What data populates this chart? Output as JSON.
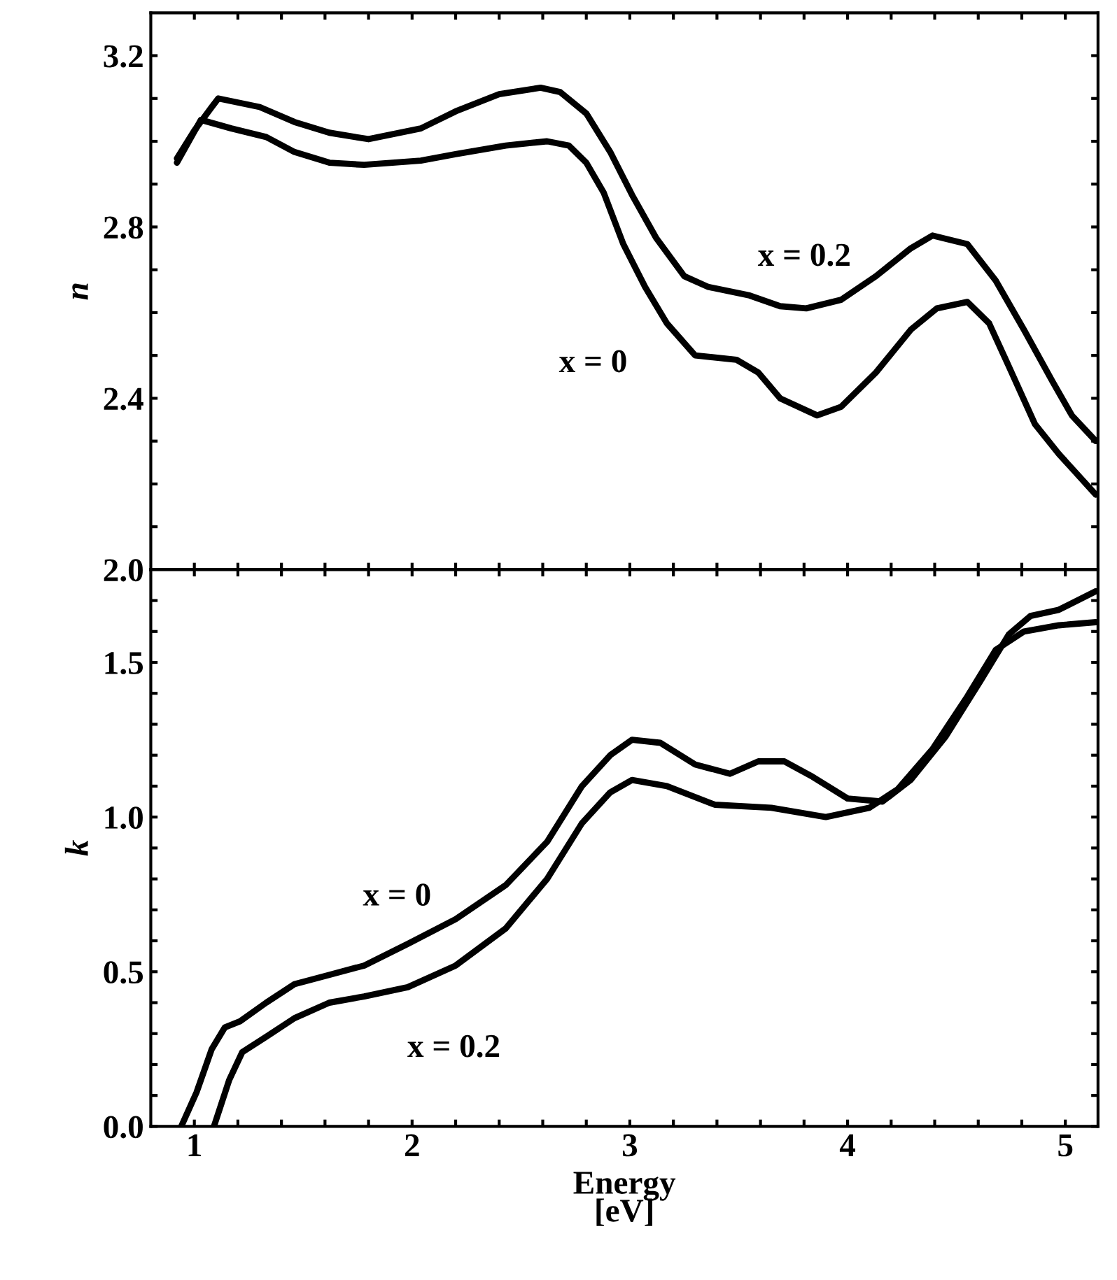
{
  "chart_data": [
    {
      "type": "line",
      "ylabel": "n",
      "xlim": [
        0.8,
        5.15
      ],
      "ylim": [
        2.0,
        3.3
      ],
      "xticks": [
        {
          "value": 1,
          "label": null
        },
        {
          "value": 1.2,
          "label": null
        },
        {
          "value": 1.4,
          "label": null
        },
        {
          "value": 1.6,
          "label": null
        },
        {
          "value": 1.8,
          "label": null
        },
        {
          "value": 2,
          "label": null
        },
        {
          "value": 2.2,
          "label": null
        },
        {
          "value": 2.4,
          "label": null
        },
        {
          "value": 2.6,
          "label": null
        },
        {
          "value": 2.8,
          "label": null
        },
        {
          "value": 3,
          "label": null
        },
        {
          "value": 3.2,
          "label": null
        },
        {
          "value": 3.4,
          "label": null
        },
        {
          "value": 3.6,
          "label": null
        },
        {
          "value": 3.8,
          "label": null
        },
        {
          "value": 4,
          "label": null
        },
        {
          "value": 4.2,
          "label": null
        },
        {
          "value": 4.4,
          "label": null
        },
        {
          "value": 4.6,
          "label": null
        },
        {
          "value": 4.8,
          "label": null
        },
        {
          "value": 5,
          "label": null
        }
      ],
      "yticks": [
        {
          "value": 2.0,
          "label": "2.0"
        },
        {
          "value": 2.1,
          "label": null
        },
        {
          "value": 2.2,
          "label": null
        },
        {
          "value": 2.3,
          "label": null
        },
        {
          "value": 2.4,
          "label": "2.4"
        },
        {
          "value": 2.5,
          "label": null
        },
        {
          "value": 2.6,
          "label": null
        },
        {
          "value": 2.7,
          "label": null
        },
        {
          "value": 2.8,
          "label": "2.8"
        },
        {
          "value": 2.9,
          "label": null
        },
        {
          "value": 3.0,
          "label": null
        },
        {
          "value": 3.1,
          "label": null
        },
        {
          "value": 3.2,
          "label": "3.2"
        }
      ],
      "tick_labels": "y",
      "series": [
        {
          "name": "x = 0",
          "color": "#000000",
          "x": [
            0.92,
            1.03,
            1.17,
            1.33,
            1.46,
            1.62,
            1.78,
            2.04,
            2.2,
            2.43,
            2.62,
            2.72,
            2.8,
            2.88,
            2.97,
            3.07,
            3.17,
            3.3,
            3.49,
            3.59,
            3.69,
            3.86,
            3.97,
            4.13,
            4.29,
            4.41,
            4.55,
            4.65,
            4.74,
            4.86,
            4.97,
            5.14
          ],
          "values": [
            2.95,
            3.05,
            3.03,
            3.01,
            2.975,
            2.95,
            2.945,
            2.955,
            2.97,
            2.99,
            3.0,
            2.99,
            2.95,
            2.88,
            2.76,
            2.66,
            2.575,
            2.5,
            2.49,
            2.46,
            2.4,
            2.36,
            2.38,
            2.46,
            2.56,
            2.61,
            2.625,
            2.575,
            2.475,
            2.34,
            2.27,
            2.175
          ]
        },
        {
          "name": "x = 0.2",
          "color": "#000000",
          "x": [
            0.92,
            1.0,
            1.08,
            1.11,
            1.3,
            1.46,
            1.62,
            1.8,
            2.04,
            2.2,
            2.4,
            2.59,
            2.68,
            2.8,
            2.91,
            3.01,
            3.12,
            3.25,
            3.36,
            3.55,
            3.69,
            3.81,
            3.97,
            4.13,
            4.29,
            4.39,
            4.55,
            4.68,
            4.81,
            4.94,
            5.03,
            5.14
          ],
          "values": [
            2.96,
            3.025,
            3.08,
            3.1,
            3.08,
            3.045,
            3.02,
            3.005,
            3.03,
            3.07,
            3.11,
            3.125,
            3.115,
            3.065,
            2.975,
            2.875,
            2.775,
            2.685,
            2.66,
            2.64,
            2.615,
            2.61,
            2.63,
            2.685,
            2.75,
            2.78,
            2.76,
            2.675,
            2.56,
            2.44,
            2.36,
            2.3
          ]
        }
      ]
    },
    {
      "type": "line",
      "xlabel": "Energy\n[eV]",
      "ylabel": "k",
      "xlim": [
        0.8,
        5.15
      ],
      "ylim": [
        0,
        1.8
      ],
      "xticks": [
        {
          "value": 1,
          "label": "1"
        },
        {
          "value": 1.2,
          "label": null
        },
        {
          "value": 1.4,
          "label": null
        },
        {
          "value": 1.6,
          "label": null
        },
        {
          "value": 1.8,
          "label": null
        },
        {
          "value": 2,
          "label": "2"
        },
        {
          "value": 2.2,
          "label": null
        },
        {
          "value": 2.4,
          "label": null
        },
        {
          "value": 2.6,
          "label": null
        },
        {
          "value": 2.8,
          "label": null
        },
        {
          "value": 3,
          "label": "3"
        },
        {
          "value": 3.2,
          "label": null
        },
        {
          "value": 3.4,
          "label": null
        },
        {
          "value": 3.6,
          "label": null
        },
        {
          "value": 3.8,
          "label": null
        },
        {
          "value": 4,
          "label": "4"
        },
        {
          "value": 4.2,
          "label": null
        },
        {
          "value": 4.4,
          "label": null
        },
        {
          "value": 4.6,
          "label": null
        },
        {
          "value": 4.8,
          "label": null
        },
        {
          "value": 5,
          "label": "5"
        }
      ],
      "yticks": [
        {
          "value": 0,
          "label": "0.0"
        },
        {
          "value": 0.1,
          "label": null
        },
        {
          "value": 0.2,
          "label": null
        },
        {
          "value": 0.3,
          "label": null
        },
        {
          "value": 0.4,
          "label": null
        },
        {
          "value": 0.5,
          "label": "0.5"
        },
        {
          "value": 0.6,
          "label": null
        },
        {
          "value": 0.7,
          "label": null
        },
        {
          "value": 0.8,
          "label": null
        },
        {
          "value": 0.9,
          "label": null
        },
        {
          "value": 1.0,
          "label": "1.0"
        },
        {
          "value": 1.1,
          "label": null
        },
        {
          "value": 1.2,
          "label": null
        },
        {
          "value": 1.3,
          "label": null
        },
        {
          "value": 1.4,
          "label": null
        },
        {
          "value": 1.5,
          "label": "1.5"
        },
        {
          "value": 1.6,
          "label": null
        },
        {
          "value": 1.7,
          "label": null
        }
      ],
      "series": [
        {
          "name": "x = 0",
          "color": "#000000",
          "x": [
            0.94,
            1.01,
            1.08,
            1.14,
            1.21,
            1.33,
            1.46,
            1.62,
            1.78,
            1.98,
            2.2,
            2.43,
            2.62,
            2.78,
            2.91,
            3.01,
            3.14,
            3.3,
            3.46,
            3.59,
            3.71,
            3.84,
            4.0,
            4.16,
            4.29,
            4.45,
            4.61,
            4.74,
            4.84,
            4.97,
            5.14
          ],
          "values": [
            0,
            0.11,
            0.25,
            0.32,
            0.34,
            0.4,
            0.46,
            0.49,
            0.52,
            0.59,
            0.67,
            0.78,
            0.92,
            1.1,
            1.2,
            1.25,
            1.24,
            1.17,
            1.14,
            1.18,
            1.18,
            1.13,
            1.06,
            1.05,
            1.12,
            1.26,
            1.44,
            1.59,
            1.65,
            1.67,
            1.73
          ]
        },
        {
          "name": "x = 0.2",
          "color": "#000000",
          "x": [
            1.09,
            1.16,
            1.22,
            1.33,
            1.46,
            1.62,
            1.78,
            1.98,
            2.2,
            2.43,
            2.62,
            2.78,
            2.91,
            3.01,
            3.17,
            3.39,
            3.65,
            3.9,
            4.1,
            4.23,
            4.39,
            4.55,
            4.68,
            4.81,
            4.97,
            5.14
          ],
          "values": [
            0,
            0.15,
            0.24,
            0.29,
            0.35,
            0.4,
            0.42,
            0.45,
            0.52,
            0.64,
            0.8,
            0.98,
            1.08,
            1.12,
            1.1,
            1.04,
            1.03,
            1.0,
            1.03,
            1.09,
            1.22,
            1.39,
            1.54,
            1.6,
            1.62,
            1.63
          ]
        }
      ]
    }
  ]
}
